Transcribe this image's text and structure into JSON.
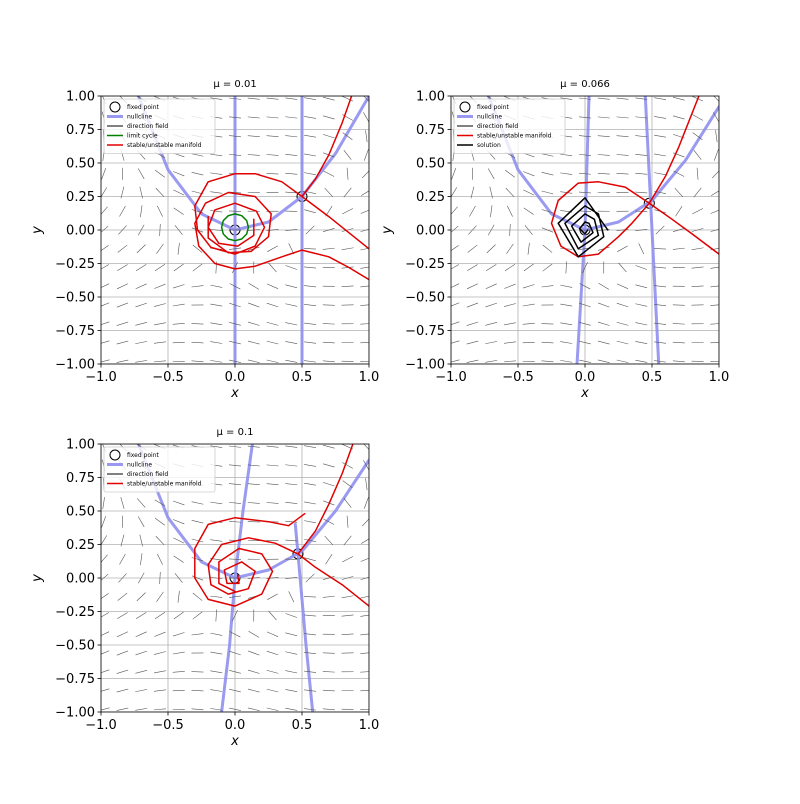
{
  "chart_data": [
    {
      "type": "line",
      "title": "μ = 0.01",
      "xlabel": "x",
      "ylabel": "y",
      "xlim": [
        -1,
        1
      ],
      "ylim": [
        -1,
        1
      ],
      "grid": true,
      "legend": "upper left",
      "xticks": [
        {
          "value": -1,
          "label": "−1.0"
        },
        {
          "value": -0.5,
          "label": "−0.5"
        },
        {
          "value": 0,
          "label": "0.0"
        },
        {
          "value": 0.5,
          "label": "0.5"
        },
        {
          "value": 1,
          "label": "1.0"
        }
      ],
      "yticks": [
        {
          "value": -1,
          "label": "−1.00"
        },
        {
          "value": -0.75,
          "label": "−0.75"
        },
        {
          "value": -0.5,
          "label": "−0.50"
        },
        {
          "value": -0.25,
          "label": "−0.25"
        },
        {
          "value": 0,
          "label": "0.00"
        },
        {
          "value": 0.25,
          "label": "0.25"
        },
        {
          "value": 0.5,
          "label": "0.50"
        },
        {
          "value": 0.75,
          "label": "0.75"
        },
        {
          "value": 1,
          "label": "1.00"
        }
      ],
      "series": [
        {
          "name": "fixed point",
          "color": "#000000",
          "marker": "o",
          "x": [
            0,
            0.5
          ],
          "y": [
            0,
            0.25
          ]
        },
        {
          "name": "nullcline",
          "color": "#8f8ff0",
          "x": [
            -0.72,
            -0.5,
            -0.25,
            0,
            0.25,
            0.5,
            0.75,
            1,
            null,
            0,
            0,
            null,
            0.5,
            0.5
          ],
          "y": [
            1,
            0.45,
            0.12,
            0,
            0.06,
            0.25,
            0.57,
            1,
            null,
            -1,
            1,
            null,
            -1,
            1
          ]
        },
        {
          "name": "direction field",
          "color": "#555555"
        },
        {
          "name": "limit cycle",
          "color": "#008000",
          "x": [
            0.1,
            0.087,
            0.05,
            0,
            -0.05,
            -0.087,
            -0.1,
            -0.087,
            -0.05,
            0,
            0.05,
            0.087,
            0.1
          ],
          "y": [
            0.02,
            0.07,
            0.107,
            0.12,
            0.107,
            0.07,
            0.02,
            -0.03,
            -0.067,
            -0.08,
            -0.067,
            -0.03,
            0.02
          ]
        },
        {
          "name": "stable/unstable manifold",
          "color": "#e00000",
          "x": [
            0.5,
            0.6,
            0.7,
            0.8,
            0.87,
            null,
            1,
            0.85,
            0.7,
            0.5,
            null,
            0.5,
            0.35,
            0.15,
            0,
            -0.2,
            -0.3,
            -0.28,
            -0.18,
            0,
            0.15,
            0.22,
            0.16,
            0,
            -0.15,
            -0.2,
            -0.12,
            0.02,
            0.14,
            0.14,
            null,
            1,
            0.85,
            0.7,
            0.5,
            0.35,
            0.15,
            0,
            -0.15,
            -0.27,
            -0.3,
            -0.22,
            -0.05,
            0.15,
            0.27,
            0.25,
            0.12,
            -0.05,
            -0.2,
            -0.2
          ],
          "y": [
            0.25,
            0.38,
            0.56,
            0.8,
            1,
            null,
            -0.14,
            -0.02,
            0.1,
            0.25,
            null,
            0.25,
            0.36,
            0.42,
            0.42,
            0.36,
            0.18,
            0,
            -0.13,
            -0.18,
            -0.12,
            0.02,
            0.14,
            0.2,
            0.15,
            0.02,
            -0.1,
            -0.12,
            -0.04,
            0.08,
            null,
            -0.37,
            -0.28,
            -0.2,
            -0.15,
            -0.2,
            -0.27,
            -0.29,
            -0.25,
            -0.12,
            0.05,
            0.2,
            0.28,
            0.25,
            0.12,
            -0.05,
            -0.16,
            -0.17,
            -0.06,
            0.1
          ]
        }
      ]
    },
    {
      "type": "line",
      "title": "μ = 0.066",
      "xlabel": "x",
      "ylabel": "y",
      "xlim": [
        -1,
        1
      ],
      "ylim": [
        -1,
        1
      ],
      "grid": true,
      "legend": "upper left",
      "xticks": [
        {
          "value": -1,
          "label": "−1.0"
        },
        {
          "value": -0.5,
          "label": "−0.5"
        },
        {
          "value": 0,
          "label": "0.0"
        },
        {
          "value": 0.5,
          "label": "0.5"
        },
        {
          "value": 1,
          "label": "1.0"
        }
      ],
      "yticks": [
        {
          "value": -1,
          "label": "−1.00"
        },
        {
          "value": -0.75,
          "label": "−0.75"
        },
        {
          "value": -0.5,
          "label": "−0.50"
        },
        {
          "value": -0.25,
          "label": "−0.25"
        },
        {
          "value": 0,
          "label": "0.00"
        },
        {
          "value": 0.25,
          "label": "0.25"
        },
        {
          "value": 0.5,
          "label": "0.50"
        },
        {
          "value": 0.75,
          "label": "0.75"
        },
        {
          "value": 1,
          "label": "1.00"
        }
      ],
      "series": [
        {
          "name": "fixed point",
          "color": "#000000",
          "marker": "o",
          "x": [
            0,
            0.48
          ],
          "y": [
            0,
            0.2
          ]
        },
        {
          "name": "nullcline",
          "color": "#8f8ff0",
          "x": [
            -0.72,
            -0.5,
            -0.25,
            0,
            0.25,
            0.5,
            0.75,
            1,
            null,
            -0.06,
            0,
            0.03,
            null,
            0.55,
            0.5,
            0.45
          ],
          "y": [
            1,
            0.45,
            0.12,
            0,
            0.06,
            0.22,
            0.52,
            0.92,
            null,
            -1,
            0,
            1,
            null,
            -1,
            0,
            1
          ]
        },
        {
          "name": "direction field",
          "color": "#555555"
        },
        {
          "name": "stable/unstable manifold",
          "color": "#e00000",
          "x": [
            0.48,
            0.6,
            0.7,
            0.85,
            null,
            1,
            0.8,
            0.65,
            0.48,
            null,
            0.48,
            0.3,
            0.1,
            -0.05,
            -0.2,
            -0.25,
            -0.18,
            -0.05,
            0.1,
            0.25,
            0.35,
            0.48
          ],
          "y": [
            0.2,
            0.4,
            0.62,
            1,
            null,
            -0.18,
            -0.03,
            0.08,
            0.2,
            null,
            0.2,
            0.32,
            0.36,
            0.35,
            0.22,
            0.05,
            -0.12,
            -0.2,
            -0.18,
            -0.05,
            0.05,
            0.2
          ]
        },
        {
          "name": "solution",
          "color": "#000000",
          "x": [
            0.17,
            0,
            -0.2,
            -0.05,
            0.14,
            0.1,
            0,
            -0.15,
            -0.05,
            0.1,
            0.07,
            0,
            -0.1,
            -0.03,
            0.06,
            0.03,
            0,
            -0.04,
            0,
            0.02
          ],
          "y": [
            0,
            0.24,
            0.05,
            -0.2,
            -0.05,
            0.12,
            0.18,
            0.05,
            -0.14,
            -0.04,
            0.08,
            0.12,
            0.03,
            -0.09,
            -0.02,
            0.05,
            0.06,
            0.01,
            -0.03,
            0
          ]
        }
      ]
    },
    {
      "type": "line",
      "title": "μ = 0.1",
      "xlabel": "x",
      "ylabel": "y",
      "xlim": [
        -1,
        1
      ],
      "ylim": [
        -1,
        1
      ],
      "grid": true,
      "legend": "upper left",
      "xticks": [
        {
          "value": -1,
          "label": "−1.0"
        },
        {
          "value": -0.5,
          "label": "−0.5"
        },
        {
          "value": 0,
          "label": "0.0"
        },
        {
          "value": 0.5,
          "label": "0.5"
        },
        {
          "value": 1,
          "label": "1.0"
        }
      ],
      "yticks": [
        {
          "value": -1,
          "label": "−1.00"
        },
        {
          "value": -0.75,
          "label": "−0.75"
        },
        {
          "value": -0.5,
          "label": "−0.50"
        },
        {
          "value": -0.25,
          "label": "−0.25"
        },
        {
          "value": 0,
          "label": "0.00"
        },
        {
          "value": 0.25,
          "label": "0.25"
        },
        {
          "value": 0.5,
          "label": "0.50"
        },
        {
          "value": 0.75,
          "label": "0.75"
        },
        {
          "value": 1,
          "label": "1.00"
        }
      ],
      "series": [
        {
          "name": "fixed point",
          "color": "#000000",
          "marker": "o",
          "x": [
            0,
            0.47
          ],
          "y": [
            0,
            0.18
          ]
        },
        {
          "name": "nullcline",
          "color": "#8f8ff0",
          "x": [
            -0.72,
            -0.5,
            -0.25,
            0,
            0.25,
            0.5,
            0.75,
            1,
            null,
            -0.1,
            -0.04,
            0,
            0.06,
            0.13,
            null,
            0.58,
            0.53,
            0.47,
            0.45
          ],
          "y": [
            1,
            0.45,
            0.12,
            0,
            0.06,
            0.2,
            0.5,
            0.88,
            null,
            -1,
            -0.5,
            0,
            0.5,
            1,
            null,
            -1,
            -0.5,
            0.18,
            0.4
          ]
        },
        {
          "name": "direction field",
          "color": "#555555"
        },
        {
          "name": "stable/unstable manifold",
          "color": "#e00000",
          "x": [
            0.47,
            0.6,
            0.7,
            0.8,
            0.88,
            null,
            1,
            0.8,
            0.6,
            0.47,
            null,
            0.47,
            0.3,
            0.1,
            -0.1,
            -0.2,
            -0.18,
            -0.05,
            0.1,
            0.15,
            0.05,
            -0.08,
            -0.06,
            0.03,
            0.02,
            null,
            0.52,
            0.4,
            0.25,
            0,
            -0.2,
            -0.3,
            -0.3,
            -0.2,
            0,
            0.2,
            0.28,
            0.2,
            0.03,
            -0.12,
            -0.12,
            0
          ],
          "y": [
            0.18,
            0.35,
            0.55,
            0.78,
            1,
            null,
            -0.21,
            -0.05,
            0.08,
            0.18,
            null,
            0.18,
            0.26,
            0.3,
            0.25,
            0.1,
            -0.05,
            -0.12,
            -0.08,
            0.05,
            0.12,
            0.06,
            -0.04,
            -0.04,
            0.02,
            null,
            0.48,
            0.39,
            0.42,
            0.45,
            0.4,
            0.22,
            0,
            -0.16,
            -0.21,
            -0.12,
            0.05,
            0.18,
            0.22,
            0.12,
            -0.04,
            -0.1
          ]
        }
      ]
    }
  ]
}
